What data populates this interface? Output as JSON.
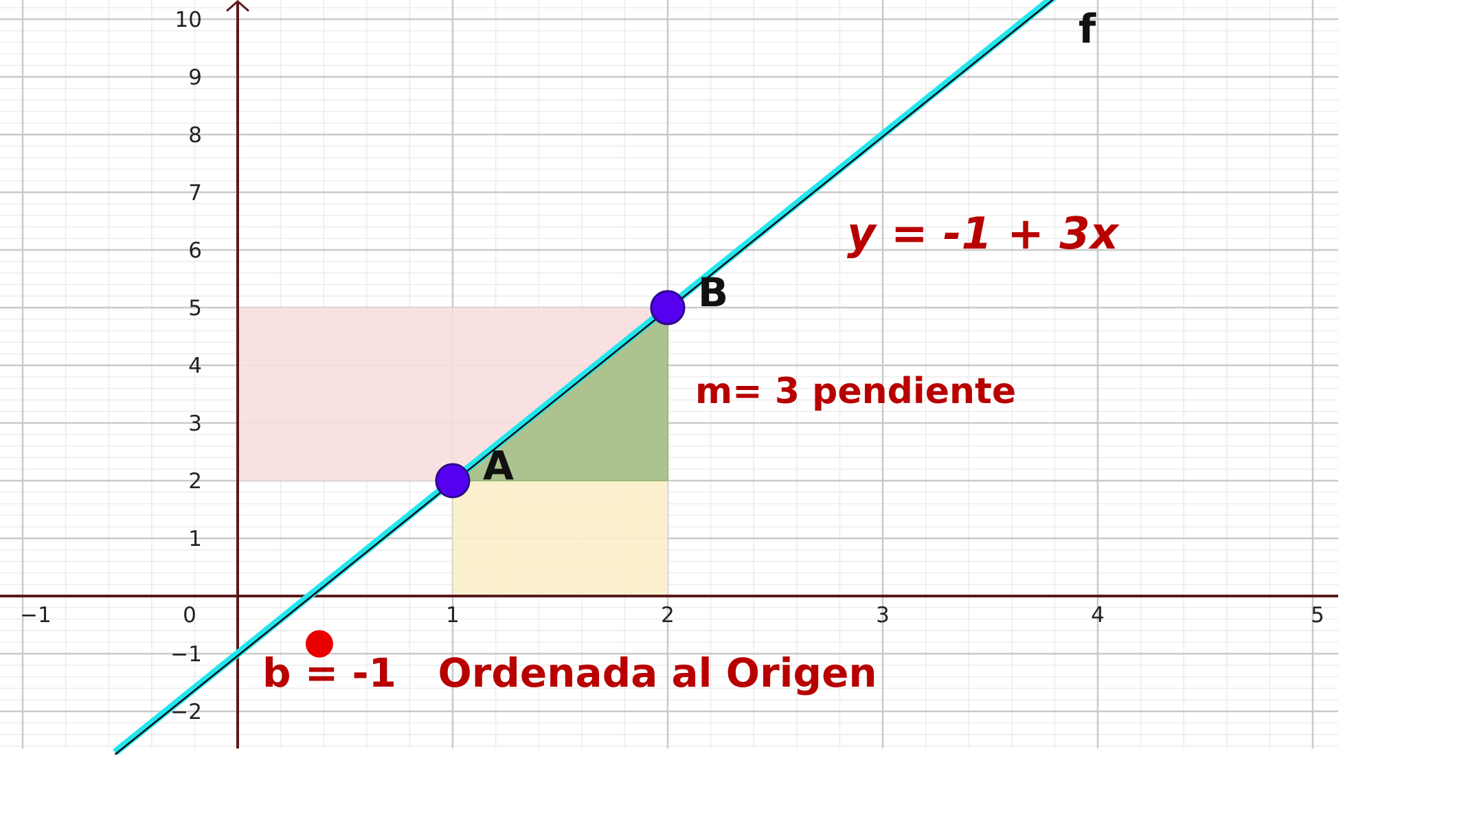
{
  "chart_data": {
    "type": "line",
    "xlim": [
      -1,
      5
    ],
    "ylim": [
      -2.6,
      10
    ],
    "x_ticks": [
      "−1",
      "0",
      "1",
      "2",
      "3",
      "4",
      "5"
    ],
    "y_ticks": [
      "−2",
      "−1",
      "1",
      "2",
      "3",
      "4",
      "5",
      "6",
      "7",
      "8",
      "9",
      "10"
    ],
    "grid": true,
    "series": [
      {
        "name": "f",
        "equation": "y = -1 + 3x",
        "slope": 3,
        "intercept": -1,
        "x_range": [
          -0.57,
          3.87
        ],
        "color": "#22e5ee"
      }
    ],
    "points": [
      {
        "name": "A",
        "x": 1,
        "y": 2,
        "color": "#5500ee"
      },
      {
        "name": "B",
        "x": 2,
        "y": 5,
        "color": "#5500ee"
      }
    ],
    "regions": [
      {
        "name": "rise",
        "x_from": 0,
        "x_to": 2,
        "y_from": 2,
        "y_to": 5,
        "color": "#f9dede"
      },
      {
        "name": "run",
        "x_from": 1,
        "x_to": 2,
        "y_from": 0,
        "y_to": 2,
        "color": "#fbeec8"
      },
      {
        "name": "slope-triangle",
        "vertices": [
          [
            1,
            2
          ],
          [
            2,
            5
          ],
          [
            2,
            2
          ]
        ],
        "color": "#a8c08a"
      }
    ],
    "annotations": {
      "function_name": "f",
      "equation": "y = -1 + 3x",
      "slope": "m= 3 pendiente",
      "intercept": "b = -1   Ordenada al Origen"
    },
    "intercept_marker": {
      "x": 0.38,
      "y": -0.9,
      "color": "#e80000"
    }
  }
}
